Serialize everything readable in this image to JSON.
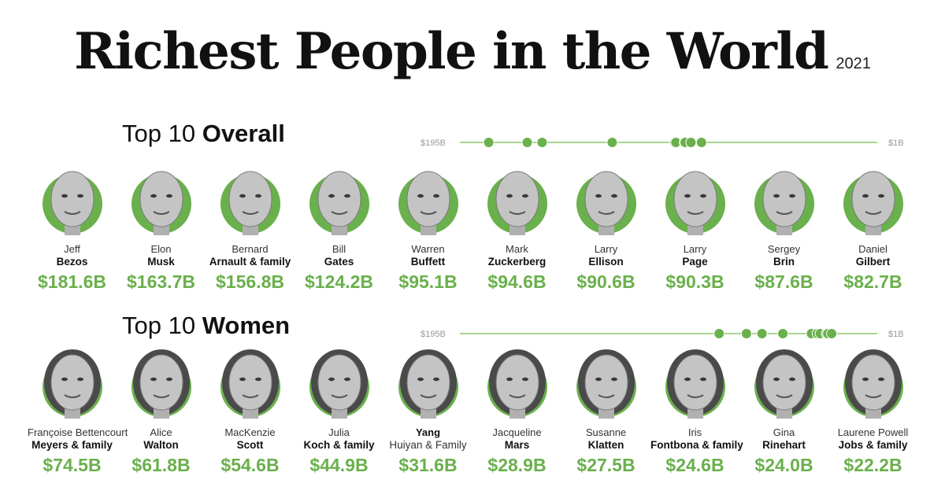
{
  "title": "Richest People in the World",
  "year": "2021",
  "colors": {
    "accent": "#6ab04c",
    "line": "#8cc56a",
    "text": "#111111"
  },
  "chart_data": [
    {
      "type": "table",
      "section_light": "Top 10",
      "section_bold": "Overall",
      "scale_max_label": "$195B",
      "scale_min_label": "$1B",
      "scale_range": [
        195,
        1
      ],
      "people": [
        {
          "first": "Jeff",
          "last": "Bezos",
          "worth_label": "$181.6B",
          "worth": 181.6
        },
        {
          "first": "Elon",
          "last": "Musk",
          "worth_label": "$163.7B",
          "worth": 163.7
        },
        {
          "first": "Bernard",
          "last": "Arnault & family",
          "worth_label": "$156.8B",
          "worth": 156.8
        },
        {
          "first": "Bill",
          "last": "Gates",
          "worth_label": "$124.2B",
          "worth": 124.2
        },
        {
          "first": "Warren",
          "last": "Buffett",
          "worth_label": "$95.1B",
          "worth": 95.1
        },
        {
          "first": "Mark",
          "last": "Zuckerberg",
          "worth_label": "$94.6B",
          "worth": 94.6
        },
        {
          "first": "Larry",
          "last": "Ellison",
          "worth_label": "$90.6B",
          "worth": 90.6
        },
        {
          "first": "Larry",
          "last": "Page",
          "worth_label": "$90.3B",
          "worth": 90.3
        },
        {
          "first": "Sergey",
          "last": "Brin",
          "worth_label": "$87.6B",
          "worth": 87.6
        },
        {
          "first": "Daniel",
          "last": "Gilbert",
          "worth_label": "$82.7B",
          "worth": 82.7
        }
      ]
    },
    {
      "type": "table",
      "section_light": "Top 10",
      "section_bold": "Women",
      "scale_max_label": "$195B",
      "scale_min_label": "$1B",
      "scale_range": [
        195,
        1
      ],
      "people": [
        {
          "first": "Françoise Bettencourt",
          "last": "Meyers & family",
          "worth_label": "$74.5B",
          "worth": 74.5
        },
        {
          "first": "Alice",
          "last": "Walton",
          "worth_label": "$61.8B",
          "worth": 61.8
        },
        {
          "first": "MacKenzie",
          "last": "Scott",
          "worth_label": "$54.6B",
          "worth": 54.6
        },
        {
          "first": "Julia",
          "last": "Koch & family",
          "worth_label": "$44.9B",
          "worth": 44.9
        },
        {
          "first": "Yang",
          "last": "Huiyan & Family",
          "worth_label": "$31.6B",
          "worth": 31.6,
          "swap_weights": true
        },
        {
          "first": "Jacqueline",
          "last": "Mars",
          "worth_label": "$28.9B",
          "worth": 28.9
        },
        {
          "first": "Susanne",
          "last": "Klatten",
          "worth_label": "$27.5B",
          "worth": 27.5
        },
        {
          "first": "Iris",
          "last": "Fontbona & family",
          "worth_label": "$24.6B",
          "worth": 24.6
        },
        {
          "first": "Gina",
          "last": "Rinehart",
          "worth_label": "$24.0B",
          "worth": 24.0
        },
        {
          "first": "Laurene Powell",
          "last": "Jobs & family",
          "worth_label": "$22.2B",
          "worth": 22.2
        }
      ]
    }
  ]
}
